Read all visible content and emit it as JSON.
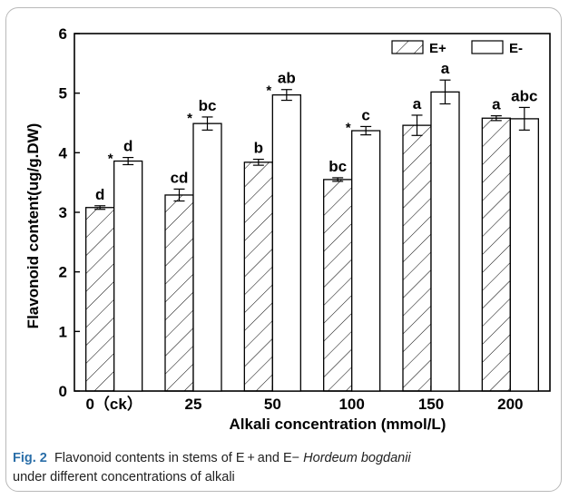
{
  "caption": {
    "label": "Fig. 2",
    "text_before": "Flavonoid contents in stems of E + and E− ",
    "species": "Hordeum bogdanii",
    "line2": "under different concentrations of alkali"
  },
  "chart_data": {
    "type": "bar",
    "xlabel": "Alkali concentration (mmol/L)",
    "ylabel": "Flavonoid content(ug/g.DW)",
    "ylim": [
      0,
      6
    ],
    "yticks": [
      "0",
      "1",
      "2",
      "3",
      "4",
      "5",
      "6"
    ],
    "categories": [
      "0（ck）",
      "25",
      "50",
      "100",
      "150",
      "200"
    ],
    "series": [
      {
        "name": "E+",
        "pattern": "hatched",
        "values": [
          3.08,
          3.29,
          3.84,
          3.55,
          4.46,
          4.58
        ],
        "errors": [
          0.03,
          0.1,
          0.05,
          0.03,
          0.17,
          0.04
        ],
        "letters": [
          "d",
          "cd",
          "b",
          "bc",
          "a",
          "a"
        ]
      },
      {
        "name": "E-",
        "pattern": "open",
        "values": [
          3.86,
          4.49,
          4.97,
          4.37,
          5.02,
          4.57
        ],
        "errors": [
          0.06,
          0.11,
          0.09,
          0.07,
          0.2,
          0.19
        ],
        "letters": [
          "d",
          "bc",
          "ab",
          "c",
          "a",
          "abc"
        ],
        "asterisks": [
          "*",
          "*",
          "*",
          "*",
          "",
          ""
        ]
      }
    ],
    "legend_position": "top-right",
    "grid": false
  }
}
